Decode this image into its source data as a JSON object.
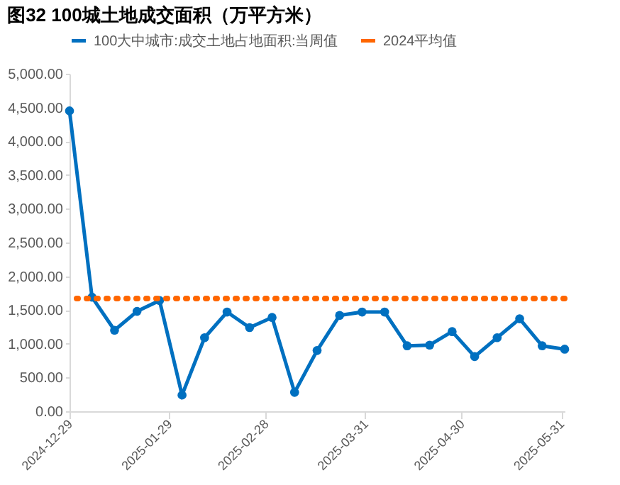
{
  "chart_data": {
    "type": "line",
    "title": "图32 100城土地成交面积（万平方米）",
    "x": [
      "2024-12-29",
      "2025-01-05",
      "2025-01-12",
      "2025-01-19",
      "2025-01-26",
      "2025-02-02",
      "2025-02-09",
      "2025-02-16",
      "2025-02-23",
      "2025-03-02",
      "2025-03-09",
      "2025-03-16",
      "2025-03-23",
      "2025-03-30",
      "2025-04-06",
      "2025-04-13",
      "2025-04-20",
      "2025-04-27",
      "2025-05-04",
      "2025-05-11",
      "2025-05-18",
      "2025-05-25",
      "2025-06-01"
    ],
    "series": [
      {
        "name": "100大中城市:成交土地占地面积:当周值",
        "color": "#0070c0",
        "values": [
          4450,
          1690,
          1200,
          1480,
          1640,
          240,
          1090,
          1470,
          1240,
          1390,
          280,
          900,
          1420,
          1470,
          1470,
          970,
          980,
          1180,
          810,
          1090,
          1370,
          970,
          920
        ]
      }
    ],
    "xlim": [
      "2024-12-29",
      "2025-06-01"
    ],
    "xticks": [
      "2024-12-29",
      "2025-01-29",
      "2025-02-28",
      "2025-03-31",
      "2025-04-30",
      "2025-05-31"
    ],
    "ylim": [
      0,
      5000
    ],
    "yticks": [
      {
        "value": 0,
        "label": "0.00"
      },
      {
        "value": 500,
        "label": "500.00"
      },
      {
        "value": 1000,
        "label": "1,000.00"
      },
      {
        "value": 1500,
        "label": "1,500.00"
      },
      {
        "value": 2000,
        "label": "2,000.00"
      },
      {
        "value": 2500,
        "label": "2,500.00"
      },
      {
        "value": 3000,
        "label": "3,000.00"
      },
      {
        "value": 3500,
        "label": "3,500.00"
      },
      {
        "value": 4000,
        "label": "4,000.00"
      },
      {
        "value": 4500,
        "label": "4,500.00"
      },
      {
        "value": 5000,
        "label": "5,000.00"
      }
    ],
    "ref_lines": [
      {
        "axis": "y",
        "value": 1670,
        "label": "2024平均值",
        "color": "#ff6600",
        "line_style": "dotted"
      }
    ],
    "marker": "circle",
    "line_style": "solid",
    "grid": false,
    "legend": "top"
  }
}
